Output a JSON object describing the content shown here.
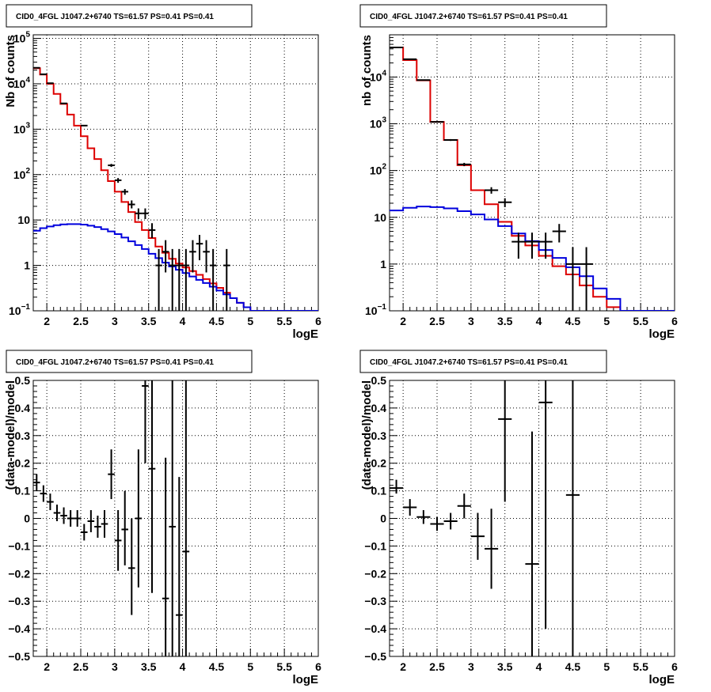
{
  "chart_data": [
    {
      "type": "histogram",
      "title": "CID0_4FGL J1047.2+6740 TS=61.57 PS=0.41 PS=0.41",
      "xlabel": "logE",
      "ylabel": "Nb of counts",
      "yscale": "log",
      "xlim": [
        1.8,
        6.0
      ],
      "ylim": [
        0.1,
        120000
      ],
      "grid": true,
      "xticks": [
        "2",
        "2.5",
        "3",
        "3.5",
        "4",
        "4.5",
        "5",
        "5.5",
        "6"
      ],
      "yticks": [
        "10^-1",
        "1",
        "10",
        "10^2",
        "10^3",
        "10^4",
        "10^5"
      ],
      "bin_edges": [
        1.8,
        1.9,
        2.0,
        2.1,
        2.2,
        2.3,
        2.4,
        2.5,
        2.6,
        2.7,
        2.8,
        2.9,
        3.0,
        3.1,
        3.2,
        3.3,
        3.4,
        3.5,
        3.6,
        3.7,
        3.8,
        3.9,
        4.0,
        4.1,
        4.2,
        4.3,
        4.4,
        4.5,
        4.6,
        4.7,
        4.8,
        4.9,
        5.0,
        5.1,
        5.2,
        5.3,
        5.4,
        5.5,
        5.6,
        5.7,
        5.8,
        5.9,
        6.0
      ],
      "series": [
        {
          "color": "#dd0000",
          "style": "step",
          "values": [
            22000,
            16000,
            10000,
            6000,
            3600,
            2100,
            1200,
            700,
            380,
            220,
            125,
            72,
            42,
            25,
            15,
            9,
            6,
            4,
            2.6,
            1.9,
            1.4,
            1.1,
            0.9,
            0.75,
            0.62,
            0.5,
            0.4,
            0.32,
            0.25,
            0.19,
            0.15,
            0.12,
            0.1,
            0.08,
            0.08,
            0.08,
            0.08,
            0.08,
            0.08,
            0.08,
            0.08,
            0.08
          ]
        },
        {
          "color": "#0000dd",
          "style": "step",
          "values": [
            5.8,
            6.6,
            7.2,
            7.7,
            8.0,
            8.1,
            8.1,
            7.9,
            7.5,
            7.0,
            6.3,
            5.6,
            4.9,
            4.1,
            3.4,
            2.8,
            2.3,
            1.8,
            1.45,
            1.15,
            0.95,
            0.8,
            0.68,
            0.57,
            0.48,
            0.41,
            0.34,
            0.28,
            0.23,
            0.19,
            0.15,
            0.12,
            0.1,
            0.08,
            0.08,
            0.08,
            0.08,
            0.08,
            0.08,
            0.08,
            0.08,
            0.08
          ]
        }
      ],
      "points": [
        {
          "x": 1.85,
          "y": 22500,
          "lo": 22200,
          "hi": 22800
        },
        {
          "x": 1.95,
          "y": 16200,
          "lo": 15900,
          "hi": 16500
        },
        {
          "x": 2.05,
          "y": 10300,
          "lo": 10100,
          "hi": 10500
        },
        {
          "x": 2.25,
          "y": 3700,
          "lo": 3640,
          "hi": 3760
        },
        {
          "x": 2.55,
          "y": 1200,
          "lo": 1170,
          "hi": 1230
        },
        {
          "x": 2.95,
          "y": 160,
          "lo": 148,
          "hi": 172
        },
        {
          "x": 3.05,
          "y": 75,
          "lo": 66,
          "hi": 84
        },
        {
          "x": 3.15,
          "y": 42,
          "lo": 36,
          "hi": 48
        },
        {
          "x": 3.25,
          "y": 22,
          "lo": 18,
          "hi": 27
        },
        {
          "x": 3.35,
          "y": 14,
          "lo": 10.5,
          "hi": 18
        },
        {
          "x": 3.45,
          "y": 14,
          "lo": 10.5,
          "hi": 18
        },
        {
          "x": 3.55,
          "y": 6,
          "lo": 4,
          "hi": 8.5
        },
        {
          "x": 3.65,
          "y": 1,
          "lo": 0.1,
          "hi": 2.3
        },
        {
          "x": 3.75,
          "y": 2,
          "lo": 0.7,
          "hi": 3.6
        },
        {
          "x": 3.85,
          "y": 1,
          "lo": 0.1,
          "hi": 2.3
        },
        {
          "x": 3.95,
          "y": 1,
          "lo": 0.1,
          "hi": 2.3
        },
        {
          "x": 4.05,
          "y": 1,
          "lo": 0.1,
          "hi": 2.3
        },
        {
          "x": 4.15,
          "y": 2,
          "lo": 0.7,
          "hi": 3.6
        },
        {
          "x": 4.25,
          "y": 3,
          "lo": 1.3,
          "hi": 4.7
        },
        {
          "x": 4.35,
          "y": 2,
          "lo": 0.7,
          "hi": 3.6
        },
        {
          "x": 4.45,
          "y": 1,
          "lo": 0.1,
          "hi": 2.3
        },
        {
          "x": 4.65,
          "y": 1,
          "lo": 0.1,
          "hi": 2.3
        }
      ]
    },
    {
      "type": "histogram",
      "title": "CID0_4FGL J1047.2+6740 TS=61.57 PS=0.41 PS=0.41",
      "xlabel": "logE",
      "ylabel": "nb of counts",
      "yscale": "log",
      "xlim": [
        1.8,
        6.0
      ],
      "ylim": [
        0.1,
        80000
      ],
      "grid": true,
      "xticks": [
        "2",
        "2.5",
        "3",
        "3.5",
        "4",
        "4.5",
        "5",
        "5.5",
        "6"
      ],
      "yticks": [
        "10^-1",
        "1",
        "10",
        "10^2",
        "10^3",
        "10^4"
      ],
      "bin_edges": [
        1.8,
        2.0,
        2.2,
        2.4,
        2.6,
        2.8,
        3.0,
        3.2,
        3.4,
        3.6,
        3.8,
        4.0,
        4.2,
        4.4,
        4.6,
        4.8,
        5.0,
        5.2,
        5.4,
        5.6,
        5.8,
        6.0
      ],
      "series": [
        {
          "color": "#dd0000",
          "style": "step",
          "values": [
            43000,
            23000,
            8500,
            1100,
            450,
            130,
            38,
            19,
            8,
            4,
            2.5,
            1.5,
            0.9,
            0.6,
            0.35,
            0.2,
            0.12,
            0.1,
            0.1,
            0.1,
            0.1
          ]
        },
        {
          "color": "#0000dd",
          "style": "step",
          "values": [
            14,
            16,
            17,
            16.5,
            15.5,
            13.5,
            11.5,
            9,
            6.5,
            4.5,
            3.1,
            2.0,
            1.35,
            0.85,
            0.55,
            0.3,
            0.18,
            0.1,
            0.1,
            0.1,
            0.1
          ]
        }
      ],
      "points": [
        {
          "x": 1.9,
          "y": 43000,
          "lo": 42600,
          "hi": 43400
        },
        {
          "x": 2.1,
          "y": 24000,
          "lo": 23700,
          "hi": 24300
        },
        {
          "x": 2.3,
          "y": 8600,
          "lo": 8500,
          "hi": 8700
        },
        {
          "x": 2.5,
          "y": 1100,
          "lo": 1070,
          "hi": 1130
        },
        {
          "x": 2.7,
          "y": 450,
          "lo": 430,
          "hi": 470
        },
        {
          "x": 2.9,
          "y": 135,
          "lo": 124,
          "hi": 146
        },
        {
          "x": 3.3,
          "y": 38,
          "lo": 32,
          "hi": 44
        },
        {
          "x": 3.5,
          "y": 21,
          "lo": 16.5,
          "hi": 25.5
        },
        {
          "x": 3.7,
          "y": 3,
          "lo": 1.3,
          "hi": 4.7
        },
        {
          "x": 3.9,
          "y": 3,
          "lo": 1.3,
          "hi": 4.7
        },
        {
          "x": 4.1,
          "y": 3,
          "lo": 1.3,
          "hi": 4.7
        },
        {
          "x": 4.3,
          "y": 5,
          "lo": 2.9,
          "hi": 7.2
        },
        {
          "x": 4.5,
          "y": 1,
          "lo": 0.1,
          "hi": 2.3
        },
        {
          "x": 4.7,
          "y": 1,
          "lo": 0.1,
          "hi": 2.3
        }
      ]
    },
    {
      "type": "scatter",
      "title": "CID0_4FGL J1047.2+6740 TS=61.57 PS=0.41 PS=0.41",
      "xlabel": "logE",
      "ylabel": "(data-model)/model",
      "yscale": "linear",
      "xlim": [
        1.8,
        6.0
      ],
      "ylim": [
        -0.5,
        0.5
      ],
      "grid": true,
      "xticks": [
        "2",
        "2.5",
        "3",
        "3.5",
        "4",
        "4.5",
        "5",
        "5.5",
        "6"
      ],
      "yticks": [
        "−0.5",
        "−0.4",
        "−0.3",
        "−0.2",
        "−0.1",
        "0",
        "0.1",
        "0.2",
        "0.3",
        "0.4",
        "0.5"
      ],
      "xbinwidth": 0.1,
      "points": [
        {
          "x": 1.85,
          "y": 0.13,
          "lo": 0.1,
          "hi": 0.16
        },
        {
          "x": 1.95,
          "y": 0.09,
          "lo": 0.06,
          "hi": 0.12
        },
        {
          "x": 2.05,
          "y": 0.06,
          "lo": 0.03,
          "hi": 0.09
        },
        {
          "x": 2.15,
          "y": 0.02,
          "lo": -0.01,
          "hi": 0.05
        },
        {
          "x": 2.25,
          "y": 0.01,
          "lo": -0.02,
          "hi": 0.04
        },
        {
          "x": 2.35,
          "y": 0.0,
          "lo": -0.03,
          "hi": 0.03
        },
        {
          "x": 2.45,
          "y": 0.0,
          "lo": -0.03,
          "hi": 0.03
        },
        {
          "x": 2.55,
          "y": -0.05,
          "lo": -0.08,
          "hi": -0.02
        },
        {
          "x": 2.65,
          "y": -0.01,
          "lo": -0.05,
          "hi": 0.03
        },
        {
          "x": 2.75,
          "y": -0.03,
          "lo": -0.07,
          "hi": 0.01
        },
        {
          "x": 2.85,
          "y": -0.02,
          "lo": -0.07,
          "hi": 0.03
        },
        {
          "x": 2.95,
          "y": 0.16,
          "lo": 0.07,
          "hi": 0.25
        },
        {
          "x": 3.05,
          "y": -0.08,
          "lo": -0.19,
          "hi": 0.03
        },
        {
          "x": 3.15,
          "y": -0.04,
          "lo": -0.17,
          "hi": 0.1
        },
        {
          "x": 3.25,
          "y": -0.18,
          "lo": -0.35,
          "hi": 0.0
        },
        {
          "x": 3.35,
          "y": 0.0,
          "lo": -0.25,
          "hi": 0.25
        },
        {
          "x": 3.45,
          "y": 0.48,
          "lo": 0.2,
          "hi": 0.5
        },
        {
          "x": 3.55,
          "y": 0.18,
          "lo": -0.27,
          "hi": 0.5
        },
        {
          "x": 3.75,
          "y": -0.29,
          "lo": -0.5,
          "hi": 0.22
        },
        {
          "x": 3.85,
          "y": -0.03,
          "lo": -0.5,
          "hi": 0.5
        },
        {
          "x": 3.95,
          "y": -0.35,
          "lo": -0.5,
          "hi": 0.15
        },
        {
          "x": 4.05,
          "y": -0.12,
          "lo": -0.5,
          "hi": 0.5
        }
      ]
    },
    {
      "type": "scatter",
      "title": "CID0_4FGL J1047.2+6740 TS=61.57 PS=0.41 PS=0.41",
      "xlabel": "logE",
      "ylabel": "(data-model)/model",
      "yscale": "linear",
      "xlim": [
        1.8,
        6.0
      ],
      "ylim": [
        -0.5,
        0.5
      ],
      "grid": true,
      "xticks": [
        "2",
        "2.5",
        "3",
        "3.5",
        "4",
        "4.5",
        "5",
        "5.5",
        "6"
      ],
      "yticks": [
        "−0.5",
        "−0.4",
        "−0.3",
        "−0.2",
        "−0.1",
        "0",
        "0.1",
        "0.2",
        "0.3",
        "0.4",
        "0.5"
      ],
      "xbinwidth": 0.2,
      "points": [
        {
          "x": 1.9,
          "y": 0.11,
          "lo": 0.09,
          "hi": 0.14
        },
        {
          "x": 2.1,
          "y": 0.04,
          "lo": 0.01,
          "hi": 0.07
        },
        {
          "x": 2.3,
          "y": 0.005,
          "lo": -0.02,
          "hi": 0.03
        },
        {
          "x": 2.5,
          "y": -0.02,
          "lo": -0.045,
          "hi": 0.005
        },
        {
          "x": 2.7,
          "y": -0.01,
          "lo": -0.04,
          "hi": 0.02
        },
        {
          "x": 2.9,
          "y": 0.045,
          "lo": 0.0,
          "hi": 0.09
        },
        {
          "x": 3.1,
          "y": -0.065,
          "lo": -0.15,
          "hi": 0.02
        },
        {
          "x": 3.3,
          "y": -0.11,
          "lo": -0.255,
          "hi": 0.035
        },
        {
          "x": 3.5,
          "y": 0.36,
          "lo": 0.06,
          "hi": 0.5
        },
        {
          "x": 3.9,
          "y": -0.165,
          "lo": -0.5,
          "hi": 0.315
        },
        {
          "x": 4.1,
          "y": 0.42,
          "lo": -0.4,
          "hi": 0.5
        },
        {
          "x": 4.5,
          "y": 0.085,
          "lo": -0.5,
          "hi": 0.5
        }
      ]
    }
  ]
}
